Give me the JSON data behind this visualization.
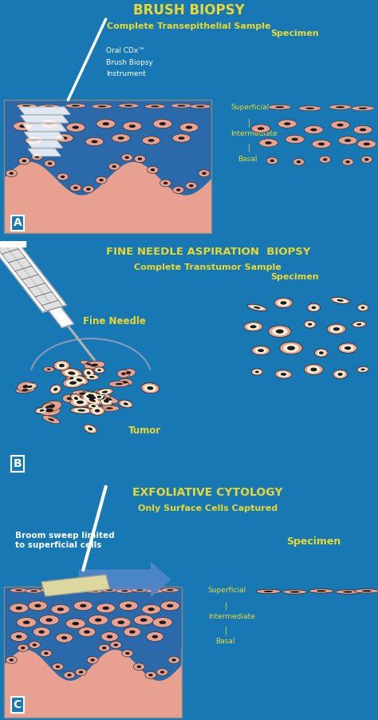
{
  "bg_color": "#1878b4",
  "tissue_blue": "#2a6aaa",
  "tissue_pink": "#e8a090",
  "cell_dark": "#1a1a1a",
  "yellow_text": "#e8d830",
  "white_text": "#ffffff",
  "cream": "#f5f0d8",
  "panel_A_title1": "BRUSH BIOPSY",
  "panel_A_title2": "Complete Transepithelial Sample",
  "panel_A_label1": "Oral CDx™",
  "panel_A_label1b": "Brush Biopsy",
  "panel_A_label1c": "Instrument",
  "panel_A_specimen": "Specimen",
  "panel_A_superficial": "Superficial",
  "panel_A_intermediate": "Intermediate",
  "panel_A_basal": "Basal",
  "panel_A_letter": "A",
  "panel_B_title1": "FINE NEEDLE ASPIRATION  BIOPSY",
  "panel_B_title2": "Complete Transtumor Sample",
  "panel_B_needle": "Fine Needle",
  "panel_B_specimen": "Specimen",
  "panel_B_tumor": "Tumor",
  "panel_B_letter": "B",
  "panel_C_title1": "EXFOLIATIVE CYTOLOGY",
  "panel_C_title2": "Only Surface Cells Captured",
  "panel_C_broom": "Broom sweep limited\nto superficial cells",
  "panel_C_specimen": "Specimen",
  "panel_C_superficial": "Superficial",
  "panel_C_intermediate": "Intermediate",
  "panel_C_basal": "Basal",
  "panel_C_letter": "C"
}
